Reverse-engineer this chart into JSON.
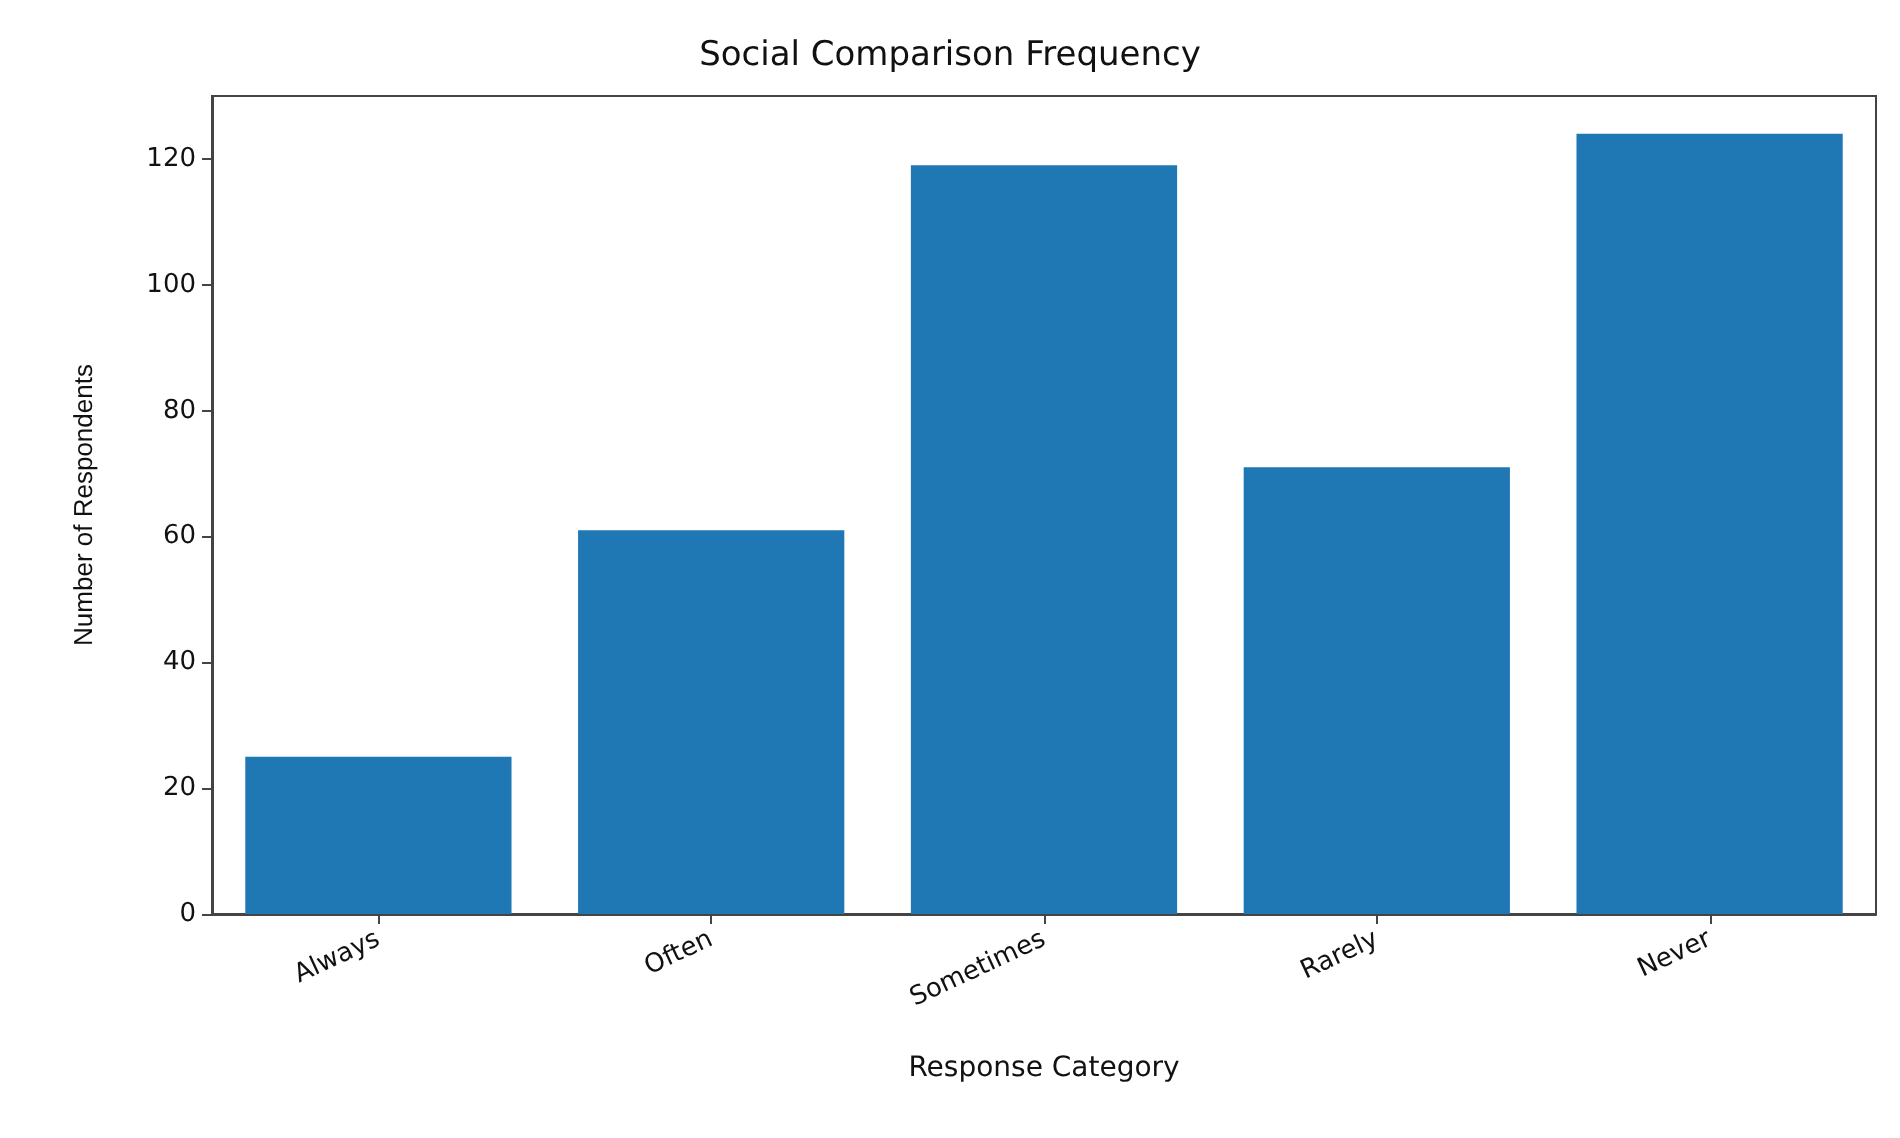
{
  "chart_data": {
    "type": "bar",
    "title": "Social Comparison Frequency",
    "xlabel": "Response Category",
    "ylabel": "Number of Respondents",
    "categories": [
      "Always",
      "Often",
      "Sometimes",
      "Rarely",
      "Never"
    ],
    "values": [
      25,
      61,
      119,
      71,
      124
    ],
    "color": "#1f77b4",
    "ylim": [
      0,
      130
    ],
    "yticks": [
      0,
      20,
      40,
      60,
      80,
      100,
      120
    ],
    "grid": false
  }
}
